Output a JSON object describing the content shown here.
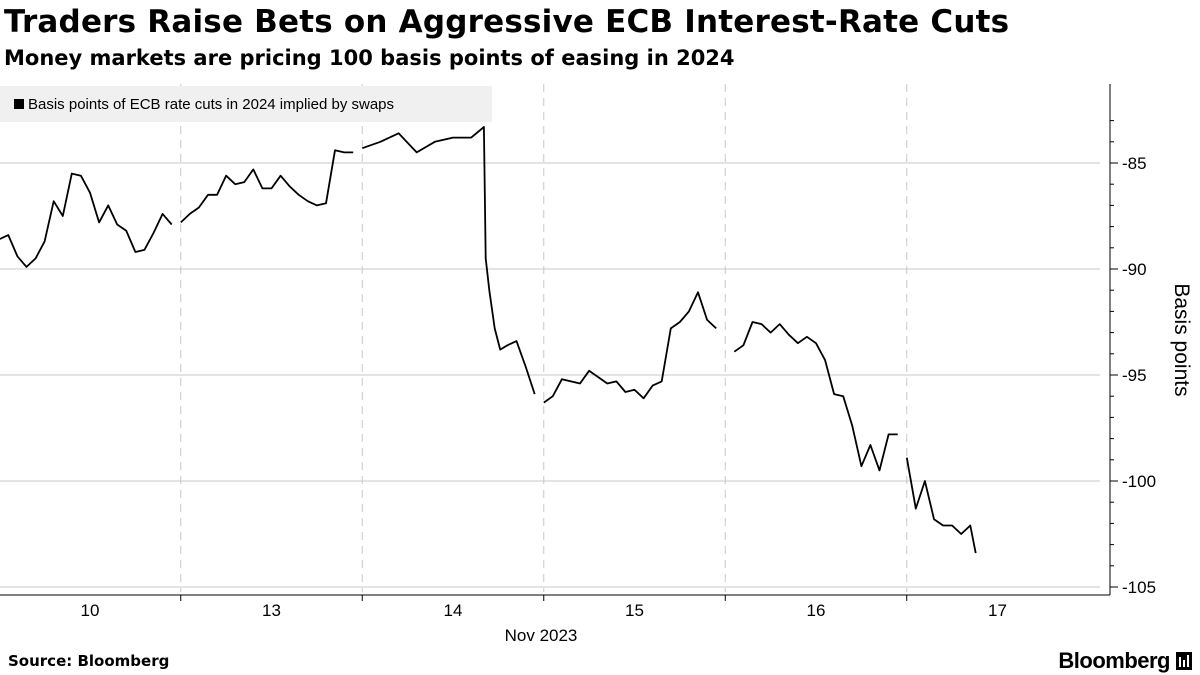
{
  "header": {
    "title": "Traders Raise Bets on Aggressive ECB Interest-Rate Cuts",
    "subtitle": "Money markets are pricing 100 basis points of easing in 2024"
  },
  "footer": {
    "source": "Source: Bloomberg",
    "brand": "Bloomberg"
  },
  "colors": {
    "line": "#000000",
    "grid": "#c8c8c8",
    "legend_bg": "#f0f0f0"
  },
  "chart_data": {
    "type": "line",
    "title": "Traders Raise Bets on Aggressive ECB Interest-Rate Cuts",
    "subtitle": "Money markets are pricing 100 basis points of easing in 2024",
    "ylabel": "Basis points",
    "xlabel": "Nov 2023",
    "ylim": [
      -106,
      -82
    ],
    "yticks": [
      -85,
      -90,
      -95,
      -100,
      -105
    ],
    "ytick_labels": [
      "-85",
      "-90",
      "-95",
      "-100",
      "-105"
    ],
    "y_axis_position": "right",
    "x_domain": [
      "2023-11-09T12:00",
      "2023-11-17T12:00"
    ],
    "xticks": [
      {
        "date": "2023-11-10",
        "label": "10"
      },
      {
        "date": "2023-11-13",
        "label": "13"
      },
      {
        "date": "2023-11-14",
        "label": "14"
      },
      {
        "date": "2023-11-15",
        "label": "15"
      },
      {
        "date": "2023-11-16",
        "label": "16"
      },
      {
        "date": "2023-11-17",
        "label": "17"
      }
    ],
    "grid": true,
    "legend": "top-left",
    "series": [
      {
        "name": "Basis points of ECB rate cuts in 2024 implied by swaps",
        "segments": [
          {
            "day": "2023-11-10",
            "x": [
              -0.5,
              -0.45,
              -0.4,
              -0.35,
              -0.3,
              -0.25,
              -0.2,
              -0.15,
              -0.1,
              -0.05,
              0.0,
              0.05,
              0.1,
              0.15,
              0.2,
              0.25,
              0.3,
              0.35,
              0.4,
              0.45
            ],
            "y": [
              -88.6,
              -88.4,
              -89.4,
              -89.9,
              -89.5,
              -88.7,
              -86.8,
              -87.5,
              -85.5,
              -85.6,
              -86.4,
              -87.8,
              -87.0,
              -87.9,
              -88.2,
              -89.2,
              -89.1,
              -88.3,
              -87.4,
              -87.9
            ]
          },
          {
            "day": "2023-11-13",
            "x": [
              0.5,
              0.55,
              0.6,
              0.65,
              0.7,
              0.75,
              0.8,
              0.85,
              0.9,
              0.95,
              1.0,
              1.05,
              1.1,
              1.15,
              1.2,
              1.25,
              1.3,
              1.35,
              1.4,
              1.45
            ],
            "y": [
              -87.8,
              -87.4,
              -87.1,
              -86.5,
              -86.5,
              -85.6,
              -86.0,
              -85.9,
              -85.3,
              -86.2,
              -86.2,
              -85.6,
              -86.1,
              -86.5,
              -86.8,
              -87.0,
              -86.9,
              -84.4,
              -84.5,
              -84.5
            ]
          },
          {
            "day": "2023-11-14",
            "x": [
              1.5,
              1.6,
              1.7,
              1.8,
              1.9,
              2.0,
              2.1,
              2.17,
              2.18,
              2.2,
              2.23,
              2.26,
              2.3,
              2.35,
              2.4,
              2.45
            ],
            "y": [
              -84.3,
              -84.0,
              -83.6,
              -84.5,
              -84.0,
              -83.8,
              -83.8,
              -83.3,
              -89.5,
              -91.0,
              -92.8,
              -93.8,
              -93.6,
              -93.4,
              -94.6,
              -95.9
            ]
          },
          {
            "day": "2023-11-15",
            "x": [
              2.5,
              2.55,
              2.6,
              2.65,
              2.7,
              2.75,
              2.8,
              2.85,
              2.9,
              2.95,
              3.0,
              3.05,
              3.1,
              3.15,
              3.2,
              3.25,
              3.3,
              3.35,
              3.4,
              3.45
            ],
            "y": [
              -96.3,
              -96.0,
              -95.2,
              -95.3,
              -95.4,
              -94.8,
              -95.1,
              -95.4,
              -95.3,
              -95.8,
              -95.7,
              -96.1,
              -95.5,
              -95.3,
              -92.8,
              -92.5,
              -92.0,
              -91.1,
              -92.4,
              -92.8
            ]
          },
          {
            "day": "2023-11-16",
            "x": [
              3.55,
              3.6,
              3.65,
              3.7,
              3.75,
              3.8,
              3.85,
              3.9,
              3.95,
              4.0,
              4.05,
              4.1,
              4.15,
              4.2,
              4.25,
              4.3,
              4.35,
              4.4,
              4.45
            ],
            "y": [
              -93.9,
              -93.6,
              -92.5,
              -92.6,
              -93.0,
              -92.6,
              -93.1,
              -93.5,
              -93.2,
              -93.5,
              -94.3,
              -95.9,
              -96.0,
              -97.4,
              -99.3,
              -98.3,
              -99.5,
              -97.8,
              -97.8
            ]
          },
          {
            "day": "2023-11-17",
            "x": [
              4.5,
              4.55,
              4.6,
              4.65,
              4.7,
              4.75,
              4.8,
              4.85,
              4.88
            ],
            "y": [
              -98.9,
              -101.3,
              -100.0,
              -101.8,
              -102.1,
              -102.1,
              -102.5,
              -102.1,
              -103.4
            ]
          }
        ]
      }
    ]
  }
}
